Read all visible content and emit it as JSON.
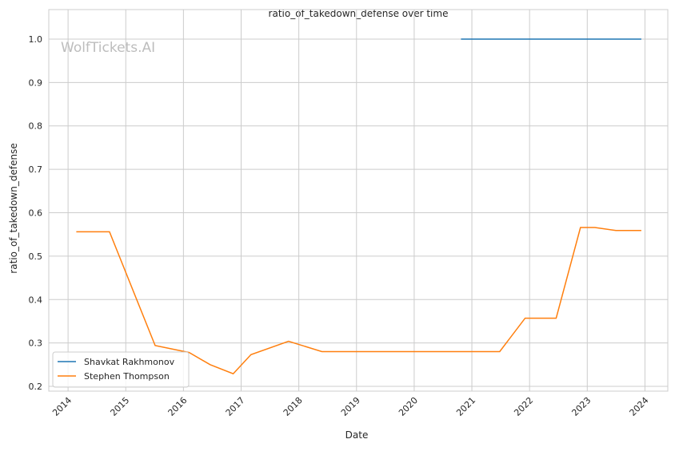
{
  "chart_data": {
    "type": "line",
    "title": "ratio_of_takedown_defense over time",
    "xlabel": "Date",
    "ylabel": "ratio_of_takedown_defense",
    "watermark": "WolfTickets.AI",
    "xlim": [
      "2013-09-01",
      "2024-05-25"
    ],
    "ylim": [
      0.189,
      1.068
    ],
    "x_ticks": [
      "2014",
      "2015",
      "2016",
      "2017",
      "2018",
      "2019",
      "2020",
      "2021",
      "2022",
      "2023",
      "2024"
    ],
    "y_ticks": [
      "0.2",
      "0.3",
      "0.4",
      "0.5",
      "0.6",
      "0.7",
      "0.8",
      "0.9",
      "1.0"
    ],
    "grid": true,
    "legend_position": "lower-left",
    "series": [
      {
        "name": "Shavkat Rakhmonov",
        "color": "#1f77b4",
        "x": [
          "2020-10-24",
          "2023-12-09"
        ],
        "y": [
          1.0,
          1.0
        ]
      },
      {
        "name": "Stephen Thompson",
        "color": "#ff7f0e",
        "x": [
          "2014-02-22",
          "2014-09-20",
          "2015-07-06",
          "2016-02-06",
          "2016-06-18",
          "2016-11-12",
          "2017-03-04",
          "2017-10-28",
          "2018-05-27",
          "2021-06-26",
          "2021-12-04",
          "2022-06-18",
          "2022-11-19",
          "2023-02-18",
          "2023-07-01",
          "2023-12-09"
        ],
        "y": [
          0.556,
          0.556,
          0.294,
          0.278,
          0.25,
          0.229,
          0.273,
          0.304,
          0.28,
          0.28,
          0.357,
          0.357,
          0.566,
          0.566,
          0.559,
          0.559
        ]
      }
    ]
  }
}
